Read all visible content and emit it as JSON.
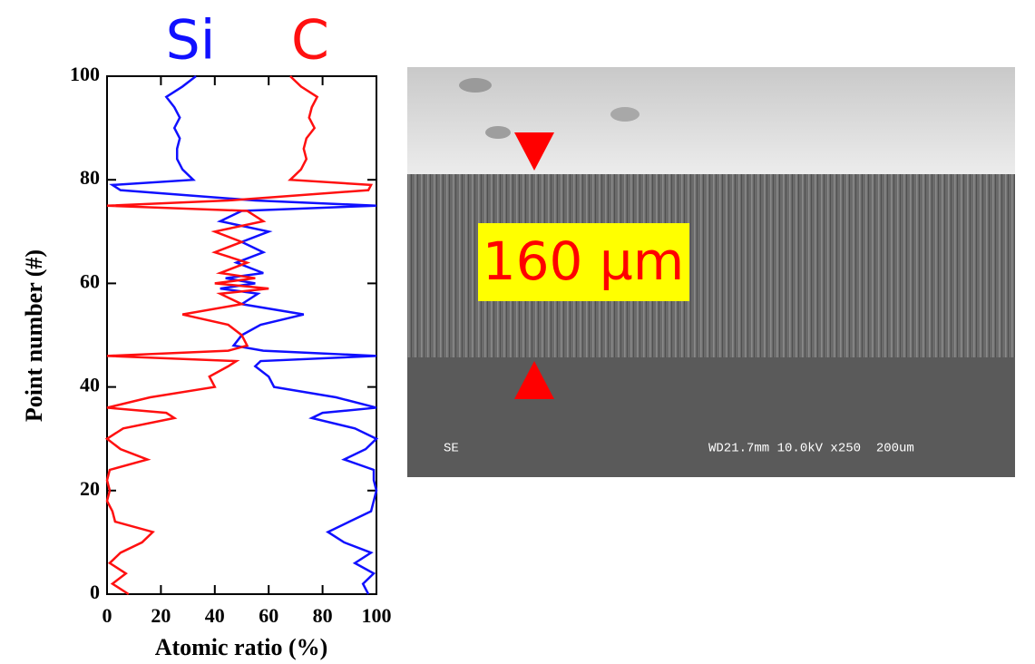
{
  "chart_data": {
    "type": "line",
    "xlabel": "Atomic ratio (%)",
    "ylabel": "Point number (#)",
    "xlim": [
      0,
      100
    ],
    "xticks": [
      0,
      20,
      40,
      60,
      80,
      100
    ],
    "ylim": [
      0,
      100
    ],
    "yticks": [
      0,
      20,
      40,
      60,
      80,
      100
    ],
    "y": [
      0,
      2,
      4,
      6,
      8,
      10,
      12,
      14,
      16,
      18,
      20,
      22,
      24,
      26,
      28,
      30,
      32,
      34,
      35,
      36,
      38,
      40,
      42,
      44,
      45,
      46,
      47,
      48,
      50,
      52,
      54,
      56,
      58,
      59,
      60,
      61,
      62,
      64,
      66,
      68,
      70,
      72,
      74,
      75,
      76,
      78,
      79,
      80,
      82,
      84,
      86,
      88,
      90,
      92,
      94,
      96,
      98,
      100
    ],
    "series": [
      {
        "name": "Si",
        "color": "#1010ff",
        "values": [
          97,
          95,
          99,
          92,
          98,
          88,
          82,
          90,
          98,
          99,
          100,
          99,
          99,
          88,
          96,
          100,
          92,
          76,
          80,
          100,
          85,
          62,
          60,
          55,
          57,
          100,
          58,
          47,
          50,
          57,
          73,
          50,
          56,
          42,
          55,
          44,
          58,
          48,
          58,
          50,
          60,
          42,
          50,
          100,
          55,
          5,
          2,
          32,
          28,
          26,
          26,
          27,
          25,
          27,
          25,
          22,
          28,
          33
        ]
      },
      {
        "name": "C",
        "color": "#ff1010",
        "values": [
          8,
          2,
          7,
          1,
          5,
          13,
          17,
          3,
          2,
          0,
          1,
          0,
          1,
          15,
          5,
          0,
          6,
          25,
          22,
          0,
          16,
          40,
          38,
          45,
          48,
          0,
          45,
          52,
          50,
          45,
          28,
          50,
          42,
          60,
          40,
          55,
          42,
          52,
          40,
          50,
          40,
          58,
          52,
          0,
          45,
          97,
          98,
          68,
          72,
          74,
          73,
          74,
          77,
          75,
          76,
          78,
          72,
          68
        ]
      }
    ]
  },
  "sem_image": {
    "label": "160 µm",
    "footer_left": "SE",
    "footer_right": "WD21.7mm 10.0kV x250  200um"
  }
}
